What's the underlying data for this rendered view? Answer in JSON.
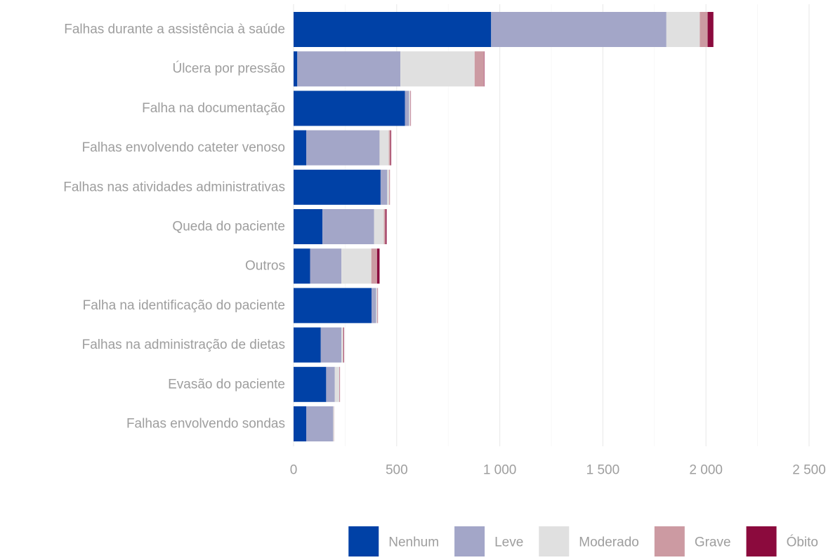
{
  "chart_data": {
    "type": "bar",
    "orientation": "horizontal",
    "stacked": true,
    "categories": [
      "Falhas durante a assistência à saúde",
      "Úlcera por pressão",
      "Falha na documentação",
      "Falhas envolvendo cateter venoso",
      "Falhas nas atividades administrativas",
      "Queda do paciente",
      "Outros",
      "Falha na identificação do paciente",
      "Falhas na administração de dietas",
      "Evasão do paciente",
      "Falhas envolvendo sondas"
    ],
    "series": [
      {
        "name": "Nenhum",
        "color": "#0041A6",
        "values": [
          958,
          18,
          540,
          62,
          422,
          140,
          80,
          378,
          132,
          158,
          62
        ]
      },
      {
        "name": "Leve",
        "color": "#A3A6C8",
        "values": [
          850,
          500,
          20,
          355,
          32,
          250,
          152,
          22,
          100,
          42,
          130
        ]
      },
      {
        "name": "Moderado",
        "color": "#E0E0E0",
        "values": [
          162,
          360,
          6,
          45,
          10,
          48,
          145,
          6,
          8,
          22,
          4
        ]
      },
      {
        "name": "Grave",
        "color": "#CC9AA2",
        "values": [
          38,
          45,
          2,
          8,
          2,
          8,
          28,
          2,
          3,
          2,
          1
        ]
      },
      {
        "name": "Óbito",
        "color": "#8B0A3D",
        "values": [
          28,
          2,
          1,
          3,
          1,
          5,
          12,
          1,
          2,
          1,
          0
        ]
      }
    ],
    "xlim": [
      0,
      2500
    ],
    "xticks": [
      0,
      500,
      1000,
      1500,
      2000,
      2500
    ],
    "xtick_labels": [
      "0",
      "500",
      "1 000",
      "1 500",
      "2 000",
      "2 500"
    ],
    "xlabel": "",
    "ylabel": "",
    "grid": true,
    "legend_position": "bottom-right"
  }
}
